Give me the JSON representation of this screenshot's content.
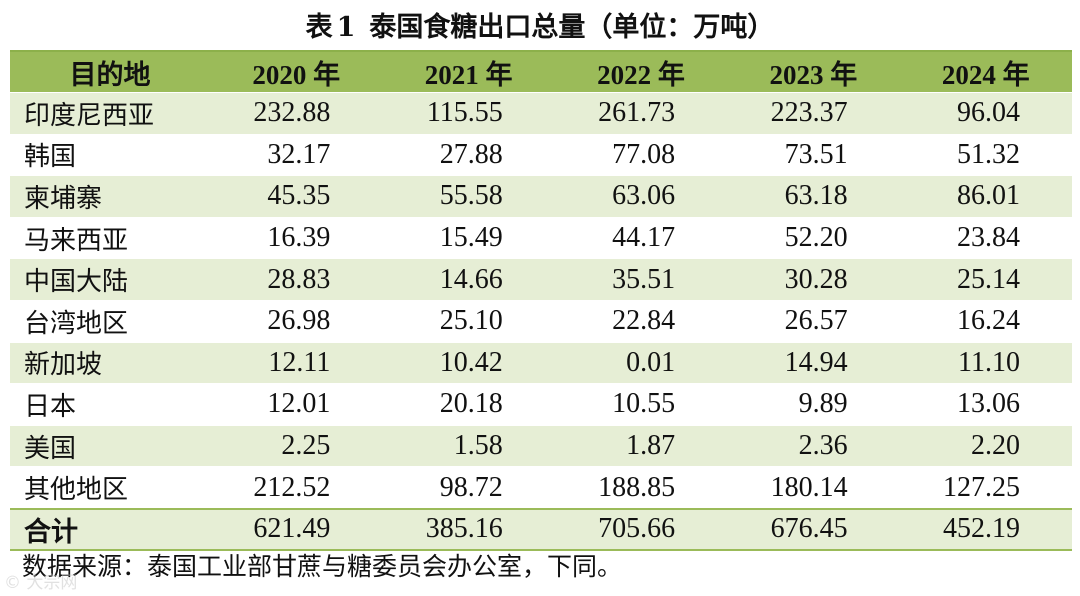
{
  "caption": {
    "label": "表",
    "number": "1",
    "title": "泰国食糖出口总量（单位：万吨）"
  },
  "table": {
    "header": [
      "目的地",
      "2020 年",
      "2021 年",
      "2022 年",
      "2023 年",
      "2024 年"
    ],
    "rows": [
      {
        "name": "印度尼西亚",
        "values": [
          "232.88",
          "115.55",
          "261.73",
          "223.37",
          "96.04"
        ]
      },
      {
        "name": "韩国",
        "values": [
          "32.17",
          "27.88",
          "77.08",
          "73.51",
          "51.32"
        ]
      },
      {
        "name": "柬埔寨",
        "values": [
          "45.35",
          "55.58",
          "63.06",
          "63.18",
          "86.01"
        ]
      },
      {
        "name": "马来西亚",
        "values": [
          "16.39",
          "15.49",
          "44.17",
          "52.20",
          "23.84"
        ]
      },
      {
        "name": "中国大陆",
        "values": [
          "28.83",
          "14.66",
          "35.51",
          "30.28",
          "25.14"
        ]
      },
      {
        "name": "台湾地区",
        "values": [
          "26.98",
          "25.10",
          "22.84",
          "26.57",
          "16.24"
        ]
      },
      {
        "name": "新加坡",
        "values": [
          "12.11",
          "10.42",
          "0.01",
          "14.94",
          "11.10"
        ]
      },
      {
        "name": "日本",
        "values": [
          "12.01",
          "20.18",
          "10.55",
          "9.89",
          "13.06"
        ]
      },
      {
        "name": "美国",
        "values": [
          "2.25",
          "1.58",
          "1.87",
          "2.36",
          "2.20"
        ]
      },
      {
        "name": "其他地区",
        "values": [
          "212.52",
          "98.72",
          "188.85",
          "180.14",
          "127.25"
        ]
      }
    ],
    "total": {
      "name": "合计",
      "values": [
        "621.49",
        "385.16",
        "705.66",
        "676.45",
        "452.19"
      ]
    }
  },
  "source": "数据来源：泰国工业部甘蔗与糖委员会办公室，下同。",
  "watermark": "© 大宗网",
  "colors": {
    "header_bg": "#9bbb59",
    "band_bg": "#e6eed5"
  }
}
